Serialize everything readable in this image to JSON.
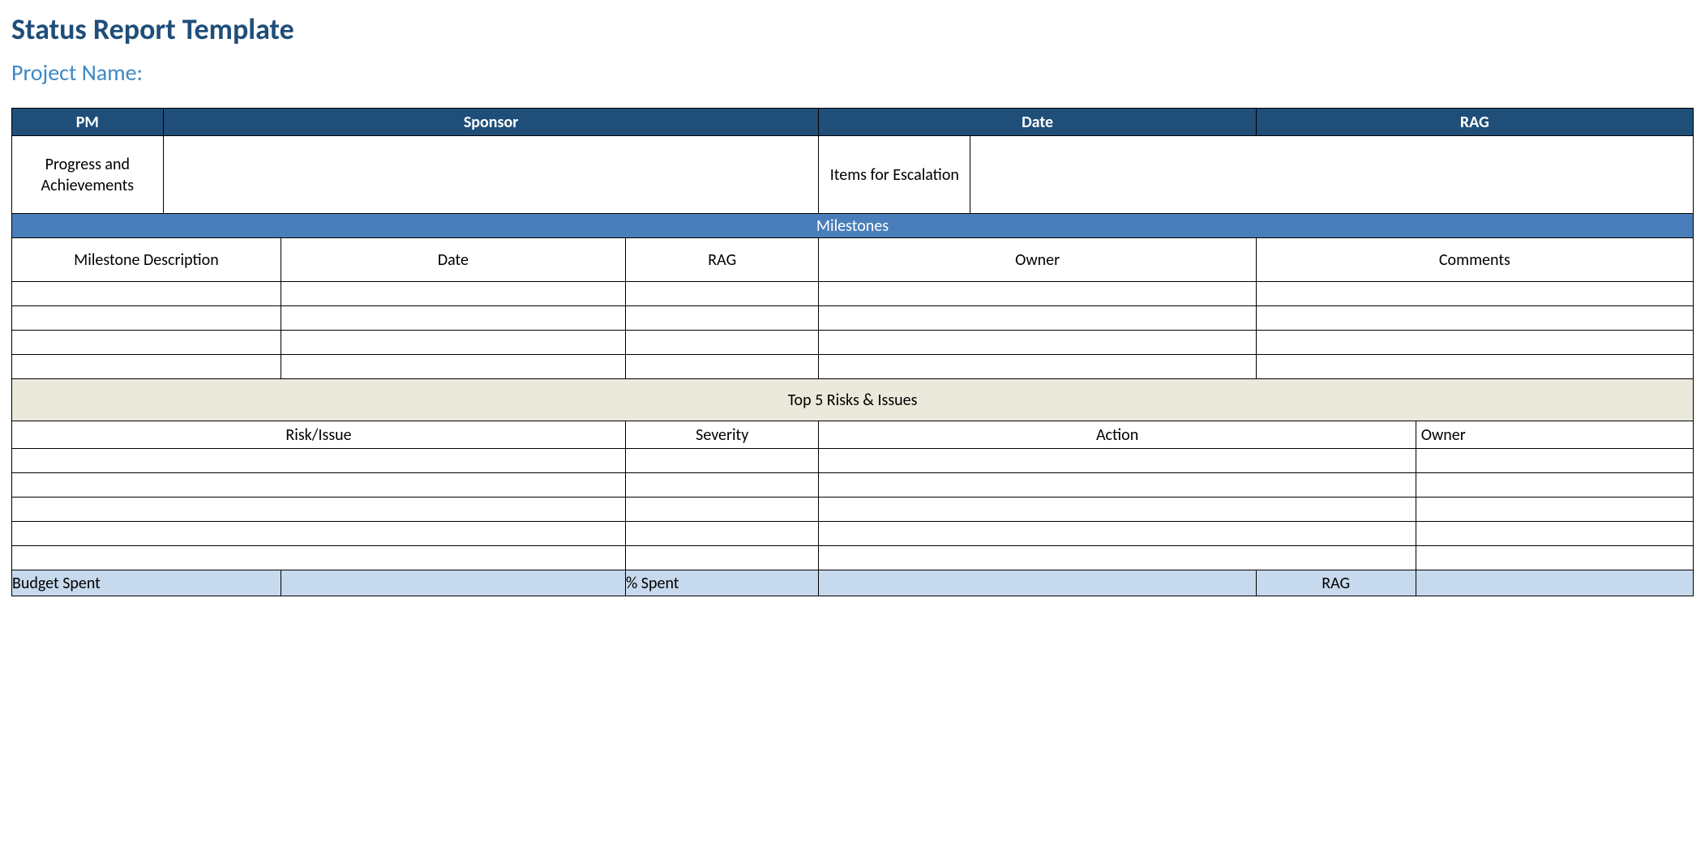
{
  "colors": {
    "title": "#1f4e79",
    "subtitle": "#3d88c7",
    "header_dark_bg": "#1f4e79",
    "header_mid_bg": "#4a7ebb",
    "section_beige_bg": "#ebe8dc",
    "budget_bg": "#c6d9ed",
    "border": "#000000",
    "text": "#000000",
    "white": "#ffffff"
  },
  "layout": {
    "col_widths_pct": [
      9,
      7,
      20.5,
      11.5,
      9,
      17,
      9.5,
      16.5
    ],
    "milestone_rows": 4,
    "risk_rows": 5
  },
  "title": "Status Report Template",
  "subtitle": "Project Name:",
  "header": {
    "pm": "PM",
    "sponsor": "Sponsor",
    "date": "Date",
    "rag": "RAG"
  },
  "progress": {
    "left_label": "Progress and Achievements",
    "right_label": "Items for Escalation"
  },
  "milestones": {
    "section": "Milestones",
    "cols": {
      "desc": "Milestone Description",
      "date": "Date",
      "rag": "RAG",
      "owner": "Owner",
      "comments": "Comments"
    }
  },
  "risks": {
    "section": "Top 5 Risks & Issues",
    "cols": {
      "risk": "Risk/Issue",
      "severity": "Severity",
      "action": "Action",
      "owner": "Owner"
    }
  },
  "budget": {
    "spent": "Budget Spent",
    "pct": "% Spent",
    "rag": "RAG"
  }
}
